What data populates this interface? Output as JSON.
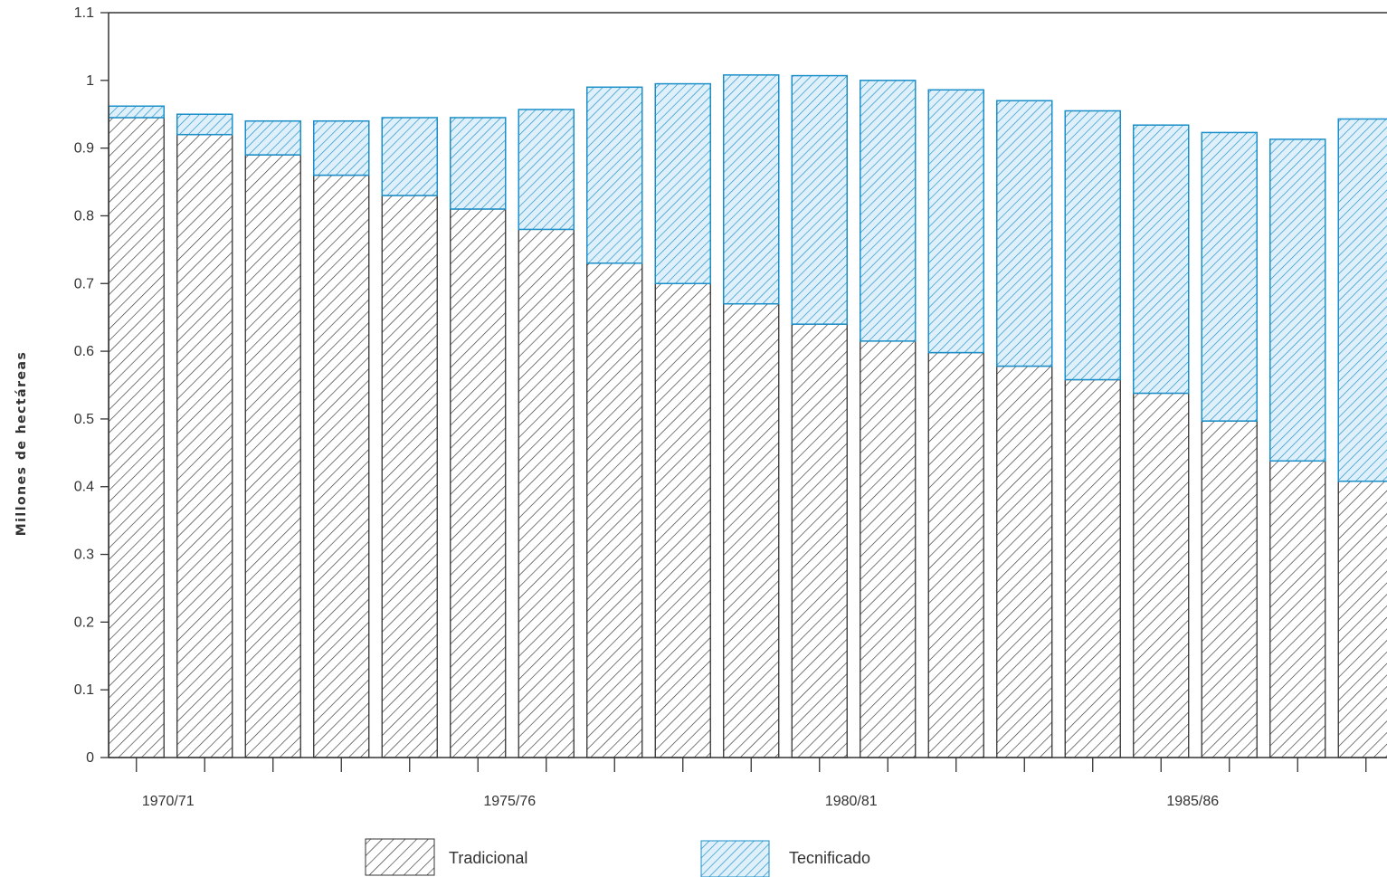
{
  "chart_data": {
    "type": "bar",
    "stacked": true,
    "ylabel": "Millones de hectáreas",
    "ylim": [
      0,
      1.1
    ],
    "yticks": [
      "0",
      "0.1",
      "0.2",
      "0.3",
      "0.4",
      "0.5",
      "0.6",
      "0.7",
      "0.8",
      "0.9",
      "1",
      "1.1"
    ],
    "xtick_labels": [
      {
        "label": "1970/71",
        "index": 0
      },
      {
        "label": "1975/76",
        "index": 5
      },
      {
        "label": "1980/81",
        "index": 10
      },
      {
        "label": "1985/86",
        "index": 15
      }
    ],
    "bar_count": 19,
    "series": [
      {
        "name": "Tradicional",
        "color": "#333333",
        "values": [
          0.945,
          0.92,
          0.89,
          0.86,
          0.83,
          0.81,
          0.78,
          0.73,
          0.7,
          0.67,
          0.64,
          0.615,
          0.598,
          0.578,
          0.558,
          0.538,
          0.497,
          0.438,
          0.408
        ]
      },
      {
        "name": "Tecnificado",
        "color": "#1a8fc9",
        "values": [
          0.017,
          0.03,
          0.05,
          0.08,
          0.115,
          0.135,
          0.177,
          0.26,
          0.295,
          0.338,
          0.367,
          0.385,
          0.388,
          0.392,
          0.397,
          0.396,
          0.426,
          0.475,
          0.535
        ]
      }
    ],
    "legend": {
      "placement": "bottom",
      "entries": [
        "Tradicional",
        "Tecnificado"
      ]
    },
    "grid": false
  }
}
